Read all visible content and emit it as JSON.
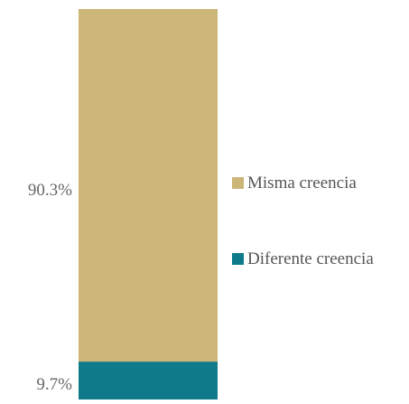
{
  "chart_data": {
    "type": "bar",
    "stacked": true,
    "categories": [
      ""
    ],
    "series": [
      {
        "name": "Diferente creencia",
        "values": [
          9.7
        ],
        "label": "9.7%",
        "color": "#0e7a8a"
      },
      {
        "name": "Misma creencia",
        "values": [
          90.3
        ],
        "label": "90.3%",
        "color": "#cbb577"
      }
    ],
    "ylim": [
      0,
      100
    ],
    "legend_position": "right"
  }
}
